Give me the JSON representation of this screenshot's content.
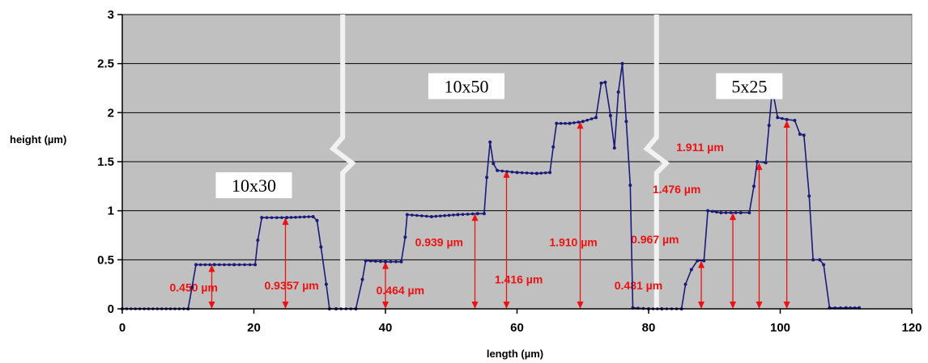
{
  "chart_data": {
    "type": "line",
    "xlabel": "length (µm)",
    "ylabel": "height (µm)",
    "xlim": [
      0,
      120
    ],
    "ylim": [
      0,
      3
    ],
    "x_ticks": [
      0,
      20,
      40,
      60,
      80,
      100,
      120
    ],
    "y_ticks": [
      0,
      0.5,
      1,
      1.5,
      2,
      2.5,
      3
    ],
    "grid": "horizontal",
    "line_color": "#1a1a7a",
    "plot_background": "#c0c0c0",
    "annotation_color": "#ee1111",
    "series": [
      {
        "values": [
          [
            0,
            0
          ],
          [
            10,
            0
          ],
          [
            10.6,
            0.22
          ],
          [
            11.2,
            0.45
          ],
          [
            14,
            0.45
          ],
          [
            17,
            0.45
          ],
          [
            20.2,
            0.45
          ],
          [
            20.6,
            0.7
          ],
          [
            21.2,
            0.93
          ],
          [
            25,
            0.93
          ],
          [
            29,
            0.94
          ],
          [
            29.6,
            0.9
          ],
          [
            30.2,
            0.63
          ],
          [
            31,
            0.25
          ],
          [
            31.5,
            0
          ],
          [
            32.5,
            0
          ],
          [
            35.5,
            0
          ],
          [
            36.5,
            0.3
          ],
          [
            37,
            0.49
          ],
          [
            40,
            0.48
          ],
          [
            42.4,
            0.48
          ],
          [
            43,
            0.73
          ],
          [
            43.3,
            0.96
          ],
          [
            47,
            0.94
          ],
          [
            51,
            0.96
          ],
          [
            54,
            0.97
          ],
          [
            55,
            0.97
          ],
          [
            55.4,
            1.34
          ],
          [
            55.9,
            1.7
          ],
          [
            56.4,
            1.48
          ],
          [
            57,
            1.41
          ],
          [
            60,
            1.39
          ],
          [
            63,
            1.38
          ],
          [
            65,
            1.39
          ],
          [
            65.5,
            1.65
          ],
          [
            66,
            1.89
          ],
          [
            68,
            1.89
          ],
          [
            70,
            1.91
          ],
          [
            72,
            1.95
          ],
          [
            72.8,
            2.3
          ],
          [
            73.4,
            2.31
          ],
          [
            74.2,
            1.97
          ],
          [
            74.8,
            1.64
          ],
          [
            75.4,
            2.21
          ],
          [
            76,
            2.5
          ],
          [
            76.6,
            1.91
          ],
          [
            77.2,
            1.26
          ],
          [
            77.6,
            0.01
          ],
          [
            80,
            0
          ],
          [
            82,
            0
          ],
          [
            85,
            0
          ],
          [
            85.6,
            0.25
          ],
          [
            86.5,
            0.4
          ],
          [
            87.4,
            0.49
          ],
          [
            88.4,
            0.49
          ],
          [
            89,
            1
          ],
          [
            91,
            0.98
          ],
          [
            94,
            0.98
          ],
          [
            95.3,
            0.98
          ],
          [
            96,
            1.25
          ],
          [
            96.5,
            1.5
          ],
          [
            97.8,
            1.49
          ],
          [
            98.3,
            1.87
          ],
          [
            98.8,
            2.24
          ],
          [
            99.6,
            1.95
          ],
          [
            101,
            1.93
          ],
          [
            102.2,
            1.92
          ],
          [
            103,
            1.78
          ],
          [
            103.6,
            1.77
          ],
          [
            104.4,
            1.15
          ],
          [
            105,
            0.5
          ],
          [
            106,
            0.5
          ],
          [
            106.6,
            0.45
          ],
          [
            107.5,
            0.01
          ],
          [
            110,
            0.01
          ],
          [
            112,
            0.01
          ]
        ]
      }
    ],
    "axis_breaks_x": [
      33.5,
      81.2
    ],
    "segment_labels": [
      {
        "text": "10x30",
        "x": 20,
        "y": 1.26
      },
      {
        "text": "10x50",
        "x": 52.3,
        "y": 2.27
      },
      {
        "text": "5x25",
        "x": 95.3,
        "y": 2.27
      }
    ],
    "annotations": [
      {
        "text": "0.450 µm",
        "arrow_x": 13.6,
        "y_top": 0.45,
        "text_x": 7.2,
        "text_y": 0.22
      },
      {
        "text": "0.9357 µm",
        "arrow_x": 24.8,
        "y_top": 0.93,
        "text_x": 21.6,
        "text_y": 0.24
      },
      {
        "text": "0.464 µm",
        "arrow_x": 40,
        "y_top": 0.48,
        "text_x": 38.6,
        "text_y": 0.19
      },
      {
        "text": "0.939 µm",
        "arrow_x": 53.6,
        "y_top": 0.97,
        "text_x": 44.5,
        "text_y": 0.68
      },
      {
        "text": "1.416 µm",
        "arrow_x": 58.4,
        "y_top": 1.41,
        "text_x": 56.6,
        "text_y": 0.3
      },
      {
        "text": "1.910 µm",
        "arrow_x": 69.6,
        "y_top": 1.91,
        "text_x": 64.9,
        "text_y": 0.68
      },
      {
        "text": "0.481 µm",
        "arrow_x": 88,
        "y_top": 0.49,
        "text_x": 74.8,
        "text_y": 0.24
      },
      {
        "text": "0.967 µm",
        "arrow_x": 92.8,
        "y_top": 0.98,
        "text_x": 77.3,
        "text_y": 0.71
      },
      {
        "text": "1.476 µm",
        "arrow_x": 96.8,
        "y_top": 1.49,
        "text_x": 80.6,
        "text_y": 1.22
      },
      {
        "text": "1.911 µm",
        "arrow_x": 101,
        "y_top": 1.92,
        "text_x": 84.2,
        "text_y": 1.65
      }
    ]
  }
}
